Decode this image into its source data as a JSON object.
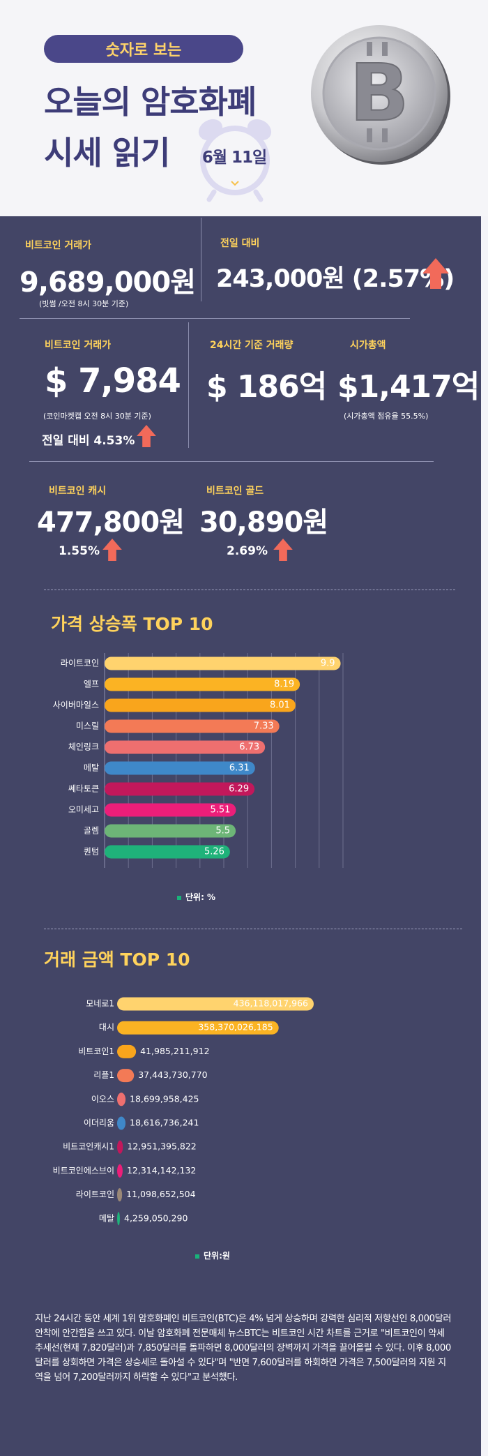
{
  "header": {
    "pill": "숫자로 보는",
    "title_line1": "오늘의 암호화폐",
    "title_line2": "시세 읽기",
    "date": "6월 11일",
    "coin_symbol": "B"
  },
  "stats": {
    "btc_krw": {
      "label": "비트코인 거래가",
      "value": "9,689,000원",
      "note": "(빗썸 /오전 8시 30분 기준)"
    },
    "prev_day": {
      "label": "전일 대비",
      "value": "243,000원 (2.57%)"
    },
    "btc_usd": {
      "label": "비트코인 거래가",
      "value": "$ 7,984",
      "note": "(코인마켓캡 오전 8시 30분 기준)",
      "change": "전일 대비 4.53%"
    },
    "volume": {
      "label": "24시간 기준 거래량",
      "value": "$ 186억"
    },
    "market_cap": {
      "label": "시가총액",
      "value": "$1,417억",
      "note": "(시가총액 점유율 55.5%)"
    },
    "bch": {
      "label": "비트코인 캐시",
      "value": "477,800원",
      "change": "1.55%"
    },
    "btg": {
      "label": "비트코인 골드",
      "value": "30,890원",
      "change": "2.69%"
    }
  },
  "colors": {
    "up_arrow": "#f26a5a",
    "label": "#ffd35c",
    "panel": "#434566"
  },
  "chart_data": [
    {
      "type": "bar",
      "orientation": "horizontal",
      "title": "가격 상승폭 TOP 10",
      "unit_label": "단위: %",
      "categories": [
        "라이트코인",
        "엘프",
        "사이버마일스",
        "미스릴",
        "체인링크",
        "메탈",
        "쎄타토큰",
        "오미세고",
        "골렘",
        "퀀텀"
      ],
      "values": [
        9.9,
        8.19,
        8.01,
        7.33,
        6.73,
        6.31,
        6.29,
        5.51,
        5.5,
        5.26
      ],
      "value_labels": [
        "9.9",
        "8.19",
        "8.01",
        "7.33",
        "6.73",
        "6.31",
        "6.29",
        "5.51",
        "5.5",
        "5.26"
      ],
      "bar_colors": [
        "#ffd36e",
        "#fbb323",
        "#f9a51c",
        "#f37a56",
        "#ee6f6f",
        "#3f88c9",
        "#c2185b",
        "#ec1e79",
        "#6db577",
        "#1fb27a"
      ],
      "xlim": [
        0,
        10
      ],
      "grid": true
    },
    {
      "type": "bar",
      "orientation": "horizontal",
      "title": "거래 금액 TOP 10",
      "unit_label": "단위:원",
      "categories": [
        "모네로1",
        "대시",
        "비트코인1",
        "리플1",
        "이오스",
        "이더리움",
        "비트코인캐시1",
        "비트코인에스브이",
        "라이트코인",
        "메탈"
      ],
      "values": [
        436118017966,
        358370026185,
        41985211912,
        37443730770,
        18699958425,
        18616736241,
        12951395822,
        12314142132,
        11098652504,
        4259050290
      ],
      "value_labels": [
        "436,118,017,966",
        "358,370,026,185",
        "41,985,211,912",
        "37,443,730,770",
        "18,699,958,425",
        "18,616,736,241",
        "12,951,395,822",
        "12,314,142,132",
        "11,098,652,504",
        "4,259,050,290"
      ],
      "bar_colors": [
        "#ffd36e",
        "#fbb323",
        "#f9a51c",
        "#f37a56",
        "#ee6f6f",
        "#3f88c9",
        "#c2185b",
        "#ec1e79",
        "#9a8877",
        "#1fb27a"
      ],
      "grid": false
    }
  ],
  "paragraph": "지난 24시간 동안 세계 1위 암호화폐인 비트코인(BTC)은 4% 넘게 상승하며 강력한 심리적 저항선인 8,000달러 안착에 안간힘을 쓰고 있다. 이날 암호화폐 전문매체 뉴스BTC는 비트코인 시간 차트를 근거로 \"비트코인이 약세 추세선(현재 7,820달러)과 7,850달러를 돌파하면 8,000달러의 장벽까지 가격을 끌어올릴 수 있다. 이후 8,000달러를 상회하면 가격은 상승세로 돌아설 수 있다\"며 \"반면 7,600달러를 하회하면 가격은 7,500달러의 지원 지역을 넘어 7,200달러까지 하락할 수 있다\"고 분석했다."
}
